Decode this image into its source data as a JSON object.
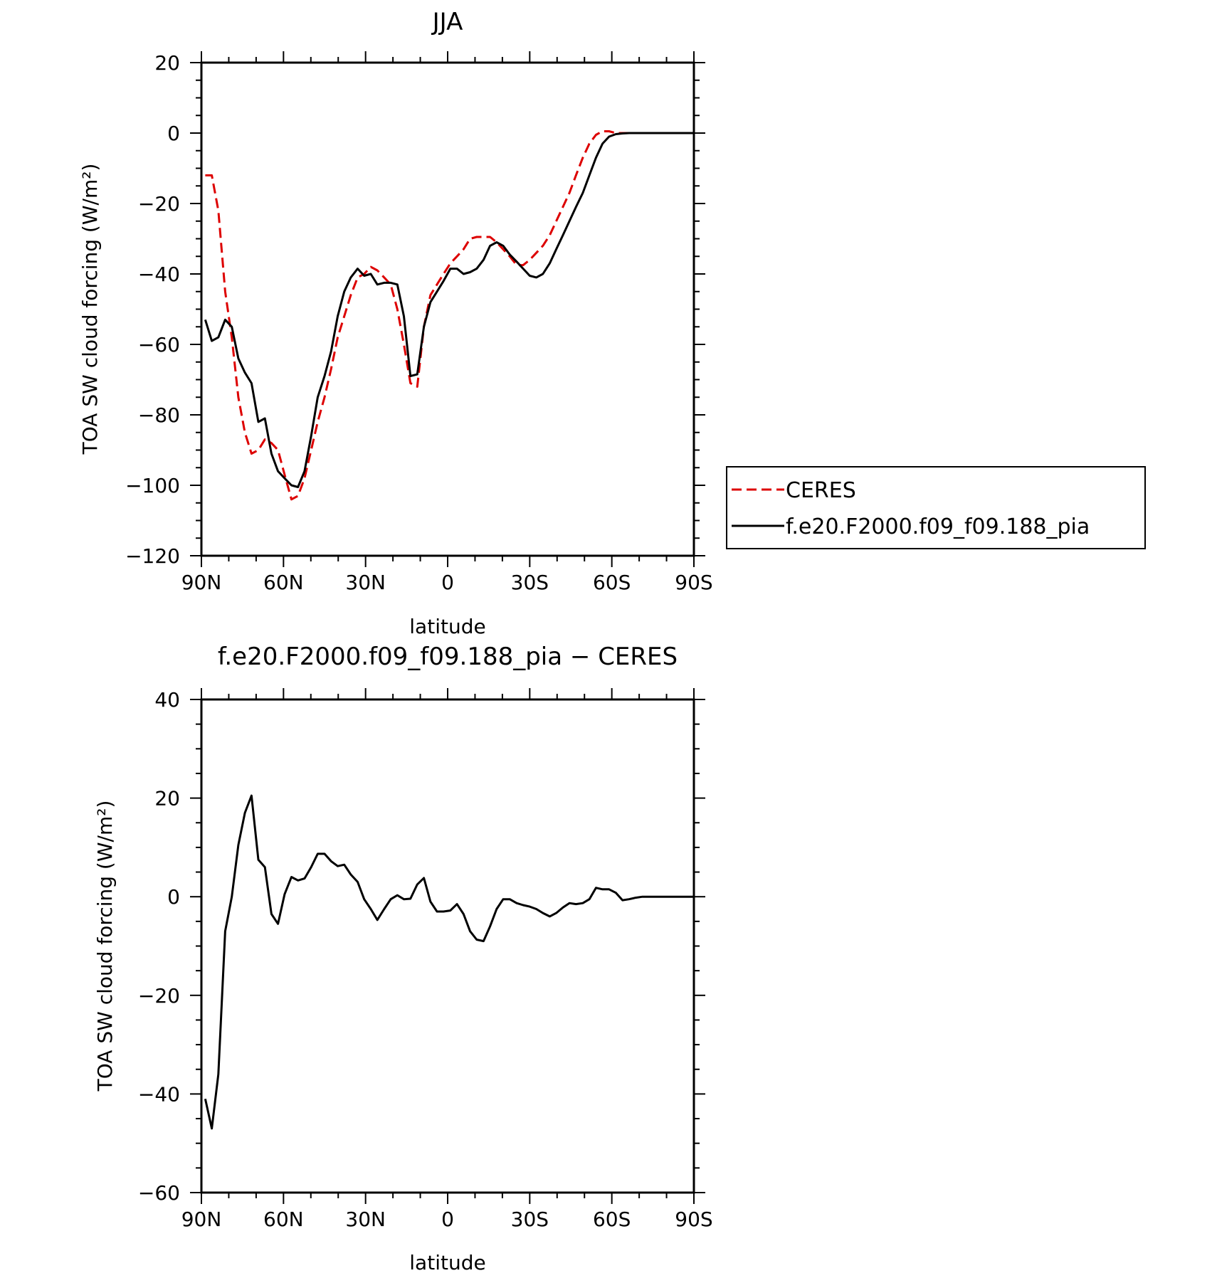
{
  "chart_data": [
    {
      "type": "line",
      "title": "JJA",
      "xlabel": "latitude",
      "ylabel": "TOA SW cloud forcing (W/m²)",
      "xlim": [
        90,
        -90
      ],
      "ylim": [
        -120,
        20
      ],
      "x_ticks": [
        90,
        60,
        30,
        0,
        -30,
        -60,
        -90
      ],
      "x_tick_labels": [
        "90N",
        "60N",
        "30N",
        "0",
        "30S",
        "60S",
        "90S"
      ],
      "y_ticks": [
        -120,
        -100,
        -80,
        -60,
        -40,
        -20,
        0,
        20
      ],
      "y_tick_labels": [
        "−120",
        "−100",
        "−80",
        "−60",
        "−40",
        "−20",
        "0",
        "20"
      ],
      "legend_position": "right",
      "series": [
        {
          "name": "CERES",
          "color": "#dd0000",
          "style": "dashed",
          "x": [
            88.6,
            86.2,
            83.8,
            81.3,
            78.9,
            76.5,
            74.1,
            71.7,
            69.2,
            66.8,
            64.4,
            62.0,
            59.6,
            57.1,
            54.7,
            52.3,
            49.9,
            47.5,
            45.0,
            42.6,
            40.2,
            37.8,
            35.4,
            32.9,
            30.5,
            28.1,
            25.7,
            23.2,
            20.8,
            18.4,
            16.0,
            13.6,
            11.1,
            8.7,
            6.3,
            3.9,
            1.5,
            -1.0,
            -3.4,
            -5.8,
            -8.2,
            -10.6,
            -13.1,
            -15.5,
            -17.9,
            -20.3,
            -22.7,
            -25.2,
            -27.6,
            -30.0,
            -32.4,
            -34.8,
            -37.3,
            -39.7,
            -42.1,
            -44.5,
            -46.9,
            -49.4,
            -51.8,
            -54.2,
            -56.6,
            -59.0,
            -61.5,
            -63.9,
            -66.3,
            -68.7,
            -71.2,
            -73.6,
            -76.0,
            -78.4,
            -80.8,
            -83.3,
            -85.7,
            -88.1,
            -90.0
          ],
          "y": [
            -12,
            -12,
            -22,
            -45,
            -58,
            -75,
            -85,
            -91,
            -90,
            -87,
            -88,
            -90,
            -97,
            -104,
            -103,
            -98,
            -90,
            -82,
            -75,
            -67,
            -58,
            -52,
            -46,
            -41,
            -40,
            -38,
            -39,
            -41,
            -43,
            -50,
            -60,
            -71,
            -72,
            -55,
            -46,
            -43,
            -40,
            -37,
            -35,
            -33,
            -30,
            -29.5,
            -29.5,
            -29.5,
            -31,
            -33,
            -35,
            -37.5,
            -37.5,
            -36,
            -34,
            -32,
            -29,
            -25,
            -21,
            -17,
            -12,
            -7,
            -3,
            -0.5,
            0.5,
            0.5,
            0,
            0,
            0,
            0,
            0,
            0,
            0,
            0,
            0,
            0,
            0,
            0,
            0
          ]
        },
        {
          "name": "f.e20.F2000.f09_f09.188_pia",
          "color": "#000000",
          "style": "solid",
          "x": [
            88.6,
            86.2,
            83.8,
            81.3,
            78.9,
            76.5,
            74.1,
            71.7,
            69.2,
            66.8,
            64.4,
            62.0,
            59.6,
            57.1,
            54.7,
            52.3,
            49.9,
            47.5,
            45.0,
            42.6,
            40.2,
            37.8,
            35.4,
            32.9,
            30.5,
            28.1,
            25.7,
            23.2,
            20.8,
            18.4,
            16.0,
            13.6,
            11.1,
            8.7,
            6.3,
            3.9,
            1.5,
            -1.0,
            -3.4,
            -5.8,
            -8.2,
            -10.6,
            -13.1,
            -15.5,
            -17.9,
            -20.3,
            -22.7,
            -25.2,
            -27.6,
            -30.0,
            -32.4,
            -34.8,
            -37.3,
            -39.7,
            -42.1,
            -44.5,
            -46.9,
            -49.4,
            -51.8,
            -54.2,
            -56.6,
            -59.0,
            -61.5,
            -63.9,
            -66.3,
            -68.7,
            -71.2,
            -73.6,
            -76.0,
            -78.4,
            -80.8,
            -83.3,
            -85.7,
            -88.1,
            -90.0
          ],
          "y": [
            -53,
            -59,
            -58,
            -53,
            -55,
            -64,
            -68,
            -71,
            -82,
            -81,
            -91,
            -96,
            -98,
            -100,
            -100.5,
            -96,
            -86,
            -75,
            -69,
            -62,
            -52,
            -45,
            -41,
            -38.5,
            -40.5,
            -40,
            -43,
            -42.5,
            -42.5,
            -43,
            -52,
            -69,
            -68.5,
            -55,
            -48,
            -45,
            -42,
            -38.5,
            -38.5,
            -40,
            -39.5,
            -38.5,
            -36,
            -32,
            -31,
            -32,
            -34.5,
            -36.5,
            -38.5,
            -40.5,
            -41,
            -40,
            -37,
            -33,
            -29,
            -25,
            -21,
            -17,
            -12,
            -7,
            -3,
            -1,
            -0.3,
            -0.1,
            0,
            0,
            0,
            0,
            0,
            0,
            0,
            0,
            0,
            0,
            0
          ]
        }
      ]
    },
    {
      "type": "line",
      "title": "f.e20.F2000.f09_f09.188_pia − CERES",
      "xlabel": "latitude",
      "ylabel": "TOA SW cloud forcing (W/m²)",
      "xlim": [
        90,
        -90
      ],
      "ylim": [
        -60,
        40
      ],
      "x_ticks": [
        90,
        60,
        30,
        0,
        -30,
        -60,
        -90
      ],
      "x_tick_labels": [
        "90N",
        "60N",
        "30N",
        "0",
        "30S",
        "60S",
        "90S"
      ],
      "y_ticks": [
        -60,
        -40,
        -20,
        0,
        20,
        40
      ],
      "y_tick_labels": [
        "−60",
        "−40",
        "−20",
        "0",
        "20",
        "40"
      ],
      "series": [
        {
          "color": "#000000",
          "style": "solid",
          "x": [
            88.6,
            86.2,
            83.8,
            81.3,
            78.9,
            76.5,
            74.1,
            71.7,
            69.2,
            66.8,
            64.4,
            62.0,
            59.6,
            57.1,
            54.7,
            52.3,
            49.9,
            47.5,
            45.0,
            42.6,
            40.2,
            37.8,
            35.4,
            32.9,
            30.5,
            28.1,
            25.7,
            23.2,
            20.8,
            18.4,
            16.0,
            13.6,
            11.1,
            8.7,
            6.3,
            3.9,
            1.5,
            -1.0,
            -3.4,
            -5.8,
            -8.2,
            -10.6,
            -13.1,
            -15.5,
            -17.9,
            -20.3,
            -22.7,
            -25.2,
            -27.6,
            -30.0,
            -32.4,
            -34.8,
            -37.3,
            -39.7,
            -42.1,
            -44.5,
            -46.9,
            -49.4,
            -51.8,
            -54.2,
            -56.6,
            -59.0,
            -61.5,
            -63.9,
            -66.3,
            -68.7,
            -71.2,
            -73.6,
            -76.0,
            -78.4,
            -80.8,
            -83.3,
            -85.7,
            -88.1,
            -90.0
          ],
          "y": [
            -41,
            -47,
            -36,
            -7,
            0,
            10.5,
            17,
            20.5,
            7.5,
            6,
            -3.5,
            -5.5,
            0.5,
            4,
            3.3,
            3.7,
            6,
            8.7,
            8.7,
            7.2,
            6.2,
            6.5,
            4.5,
            3,
            -0.5,
            -2.5,
            -4.7,
            -2.5,
            -0.5,
            0.3,
            -0.5,
            -0.4,
            2.5,
            3.8,
            -1,
            -3,
            -3,
            -2.8,
            -1.5,
            -3.5,
            -7,
            -8.7,
            -9,
            -6,
            -2.5,
            -0.5,
            -0.5,
            -1.3,
            -1.7,
            -2,
            -2.5,
            -3.3,
            -4,
            -3.3,
            -2.2,
            -1.3,
            -1.5,
            -1.3,
            -0.5,
            1.8,
            1.5,
            1.5,
            0.8,
            -0.7,
            -0.5,
            -0.2,
            0,
            0,
            0,
            0,
            0,
            0,
            0,
            0,
            0
          ]
        }
      ]
    }
  ]
}
